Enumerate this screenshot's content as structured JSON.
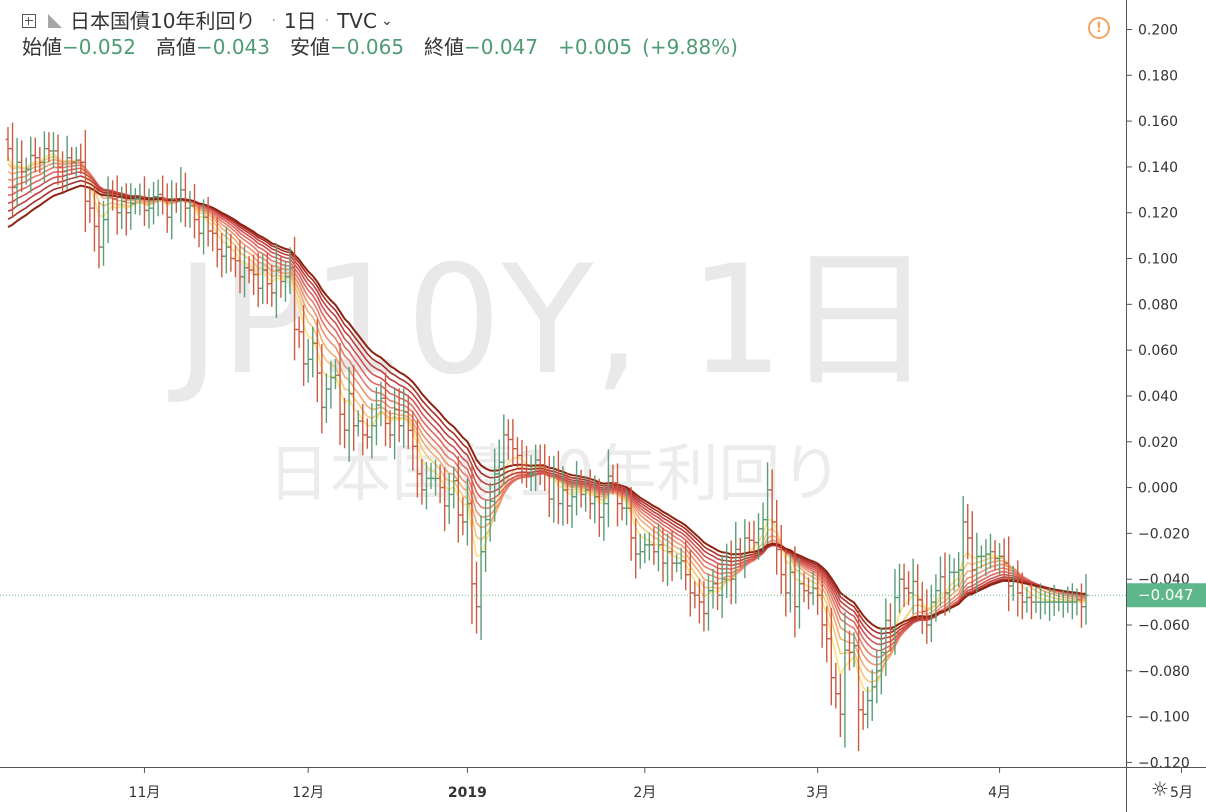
{
  "header": {
    "symbol": "日本国債10年利回り",
    "interval": "1日",
    "exchange": "TVC",
    "open_label": "始値",
    "open_value": "−0.052",
    "high_label": "高値",
    "high_value": "−0.043",
    "low_label": "安値",
    "low_value": "−0.065",
    "close_label": "終値",
    "close_value": "−0.047",
    "change": "+0.005",
    "change_pct": "(+9.88%)"
  },
  "watermark": {
    "line1": "JP10Y, 1日",
    "line2": "日本国債10年利回り"
  },
  "colors": {
    "up": "#5b9c78",
    "down": "#cd5a42",
    "last_price": "#5eb78a",
    "ribbon": [
      "#fbe27a",
      "#f7c878",
      "#f2ad74",
      "#ec9470",
      "#e67c6a",
      "#dd6660",
      "#cf5150",
      "#bf3e3c",
      "#a82e28",
      "#8f2310"
    ]
  },
  "icons": {
    "add": "plus-box-icon",
    "flag": "flag-icon",
    "chevron": "chevron-down-icon",
    "warning": "warning-icon",
    "settings": "gear-icon"
  },
  "chart_data": {
    "type": "ohlc",
    "y_ticks": [
      "0.200",
      "0.180",
      "0.160",
      "0.140",
      "0.120",
      "0.100",
      "0.080",
      "0.060",
      "0.040",
      "0.020",
      "0.000",
      "−0.020",
      "−0.040",
      "−0.060",
      "−0.080",
      "−0.100",
      "−0.120"
    ],
    "ylim": [
      -0.122,
      0.212
    ],
    "x_ticks": [
      {
        "label": "11月",
        "bar": 30,
        "bold": false
      },
      {
        "label": "12月",
        "bar": 66,
        "bold": false
      },
      {
        "label": "2019",
        "bar": 101,
        "bold": true
      },
      {
        "label": "2月",
        "bar": 140,
        "bold": false
      },
      {
        "label": "3月",
        "bar": 178,
        "bold": false
      },
      {
        "label": "4月",
        "bar": 218,
        "bold": false
      },
      {
        "label": "5月",
        "bar": 258,
        "bold": false
      }
    ],
    "last_price": -0.047,
    "last_price_label": "−0.047",
    "closes": [
      0.148,
      0.131,
      0.142,
      0.138,
      0.139,
      0.145,
      0.144,
      0.142,
      0.148,
      0.147,
      0.147,
      0.14,
      0.138,
      0.144,
      0.142,
      0.143,
      0.142,
      0.125,
      0.122,
      0.114,
      0.105,
      0.117,
      0.127,
      0.126,
      0.12,
      0.125,
      0.12,
      0.124,
      0.126,
      0.127,
      0.121,
      0.122,
      0.127,
      0.128,
      0.126,
      0.118,
      0.126,
      0.125,
      0.13,
      0.122,
      0.123,
      0.117,
      0.111,
      0.118,
      0.112,
      0.111,
      0.104,
      0.101,
      0.105,
      0.1,
      0.099,
      0.092,
      0.096,
      0.095,
      0.093,
      0.087,
      0.095,
      0.089,
      0.085,
      0.095,
      0.09,
      0.092,
      0.096,
      0.069,
      0.068,
      0.054,
      0.056,
      0.063,
      0.05,
      0.035,
      0.043,
      0.048,
      0.049,
      0.032,
      0.025,
      0.041,
      0.027,
      0.029,
      0.023,
      0.022,
      0.027,
      0.036,
      0.039,
      0.028,
      0.023,
      0.034,
      0.027,
      0.033,
      0.025,
      0.018,
      0.006,
      -0.001,
      0.004,
      0.004,
      0.004,
      0.0,
      -0.008,
      -0.003,
      0.003,
      -0.012,
      -0.015,
      -0.007,
      -0.042,
      -0.052,
      -0.028,
      -0.014,
      -0.006,
      0.006,
      0.011,
      0.023,
      0.021,
      0.017,
      0.014,
      0.01,
      0.006,
      0.006,
      0.012,
      0.01,
      0.006,
      -0.005,
      0.005,
      -0.007,
      -0.001,
      -0.008,
      -0.004,
      0.002,
      -0.003,
      -0.001,
      -0.007,
      -0.004,
      -0.013,
      -0.007,
      0.005,
      0.002,
      -0.007,
      -0.009,
      -0.009,
      -0.022,
      -0.029,
      -0.028,
      -0.025,
      -0.025,
      -0.028,
      -0.025,
      -0.033,
      -0.028,
      -0.033,
      -0.033,
      -0.032,
      -0.038,
      -0.046,
      -0.047,
      -0.05,
      -0.055,
      -0.045,
      -0.042,
      -0.047,
      -0.04,
      -0.032,
      -0.04,
      -0.027,
      -0.03,
      -0.022,
      -0.023,
      -0.024,
      -0.018,
      -0.014,
      -0.001,
      -0.015,
      -0.027,
      -0.038,
      -0.046,
      -0.037,
      -0.052,
      -0.042,
      -0.045,
      -0.046,
      -0.044,
      -0.047,
      -0.06,
      -0.066,
      -0.083,
      -0.09,
      -0.099,
      -0.071,
      -0.072,
      -0.069,
      -0.097,
      -0.099,
      -0.093,
      -0.087,
      -0.08,
      -0.072,
      -0.058,
      -0.062,
      -0.048,
      -0.04,
      -0.044,
      -0.046,
      -0.041,
      -0.049,
      -0.054,
      -0.06,
      -0.05,
      -0.045,
      -0.039,
      -0.046,
      -0.037,
      -0.037,
      -0.036,
      -0.015,
      -0.022,
      -0.036,
      -0.03,
      -0.03,
      -0.029,
      -0.028,
      -0.031,
      -0.03,
      -0.033,
      -0.043,
      -0.04,
      -0.046,
      -0.05,
      -0.048,
      -0.05,
      -0.05,
      -0.05,
      -0.05,
      -0.05,
      -0.05,
      -0.05,
      -0.05,
      -0.05,
      -0.05,
      -0.049,
      -0.052,
      -0.047
    ]
  }
}
